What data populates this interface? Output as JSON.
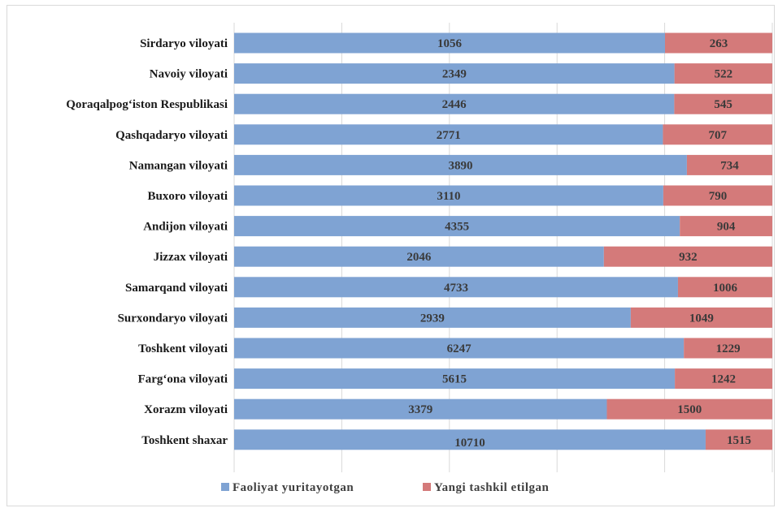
{
  "chart_data": {
    "type": "bar",
    "orientation": "horizontal",
    "stacking": "percent",
    "categories": [
      "Sirdaryo viloyati",
      "Navoiy viloyati",
      "Qoraqalpog‘iston Respublikasi",
      "Qashqadaryo viloyati",
      "Namangan viloyati",
      "Buxoro viloyati",
      "Andijon viloyati",
      "Jizzax viloyati",
      "Samarqand viloyati",
      "Surxondaryo viloyati",
      "Toshkent viloyati",
      "Farg‘ona viloyati",
      "Xorazm viloyati",
      "Toshkent shaxar"
    ],
    "series": [
      {
        "name": "Faoliyat yuritayotgan",
        "color": "#7fa3d3",
        "values": [
          1056,
          2349,
          2446,
          2771,
          3890,
          3110,
          4355,
          2046,
          4733,
          2939,
          6247,
          5615,
          3379,
          10710
        ]
      },
      {
        "name": "Yangi tashkil etilgan",
        "color": "#d47a7a",
        "values": [
          263,
          522,
          545,
          707,
          734,
          790,
          904,
          932,
          1006,
          1049,
          1229,
          1242,
          1500,
          1515
        ]
      }
    ],
    "grid": "vertical",
    "legend_position": "bottom",
    "title": "",
    "xlabel": "",
    "ylabel": ""
  }
}
